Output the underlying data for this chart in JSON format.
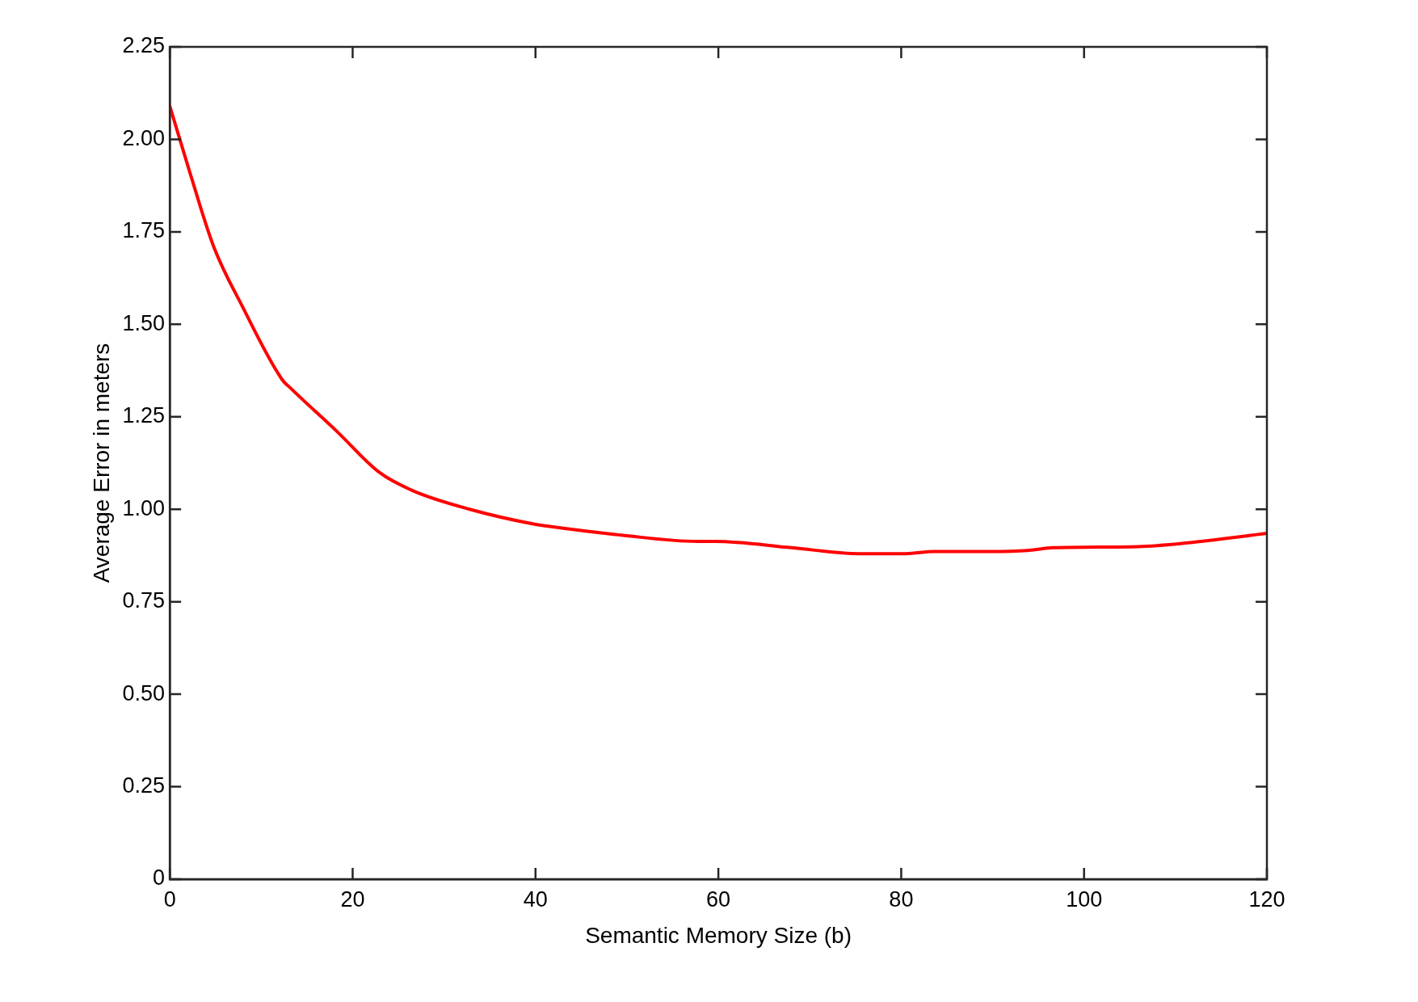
{
  "chart_data": {
    "type": "line",
    "xlabel": "Semantic Memory Size (b)",
    "ylabel": "Average Error in meters",
    "x": [
      0,
      2.2,
      4.8,
      7.9,
      12.3,
      13.1,
      18.3,
      22.9,
      26.6,
      32.8,
      39.8,
      41.1,
      49.4,
      57.7,
      59.7,
      68,
      75.3,
      80.5,
      83.6,
      89.8,
      94,
      96.6,
      105.9,
      111.6,
      120
    ],
    "series": [
      {
        "color": "#ff0000",
        "values": [
          2.09,
          1.91,
          1.71,
          1.55,
          1.35,
          1.33,
          1.21,
          1.1,
          1.05,
          1.0,
          0.96,
          0.955,
          0.93,
          0.913,
          0.913,
          0.896,
          0.88,
          0.88,
          0.886,
          0.886,
          0.889,
          0.896,
          0.899,
          0.91,
          0.935
        ]
      }
    ],
    "xlim": [
      0,
      120
    ],
    "xticks": [
      0,
      20,
      40,
      60,
      80,
      100,
      120
    ],
    "ylim": [
      0,
      2.25
    ],
    "yticks": [
      0,
      {
        "value": 0.25,
        "label": "0.25"
      },
      {
        "value": 0.5,
        "label": "0.50"
      },
      {
        "value": 0.75,
        "label": "0.75"
      },
      {
        "value": 1,
        "label": "1.00"
      },
      {
        "value": 1.25,
        "label": "1.25"
      },
      {
        "value": 1.5,
        "label": "1.50"
      },
      {
        "value": 1.75,
        "label": "1.75"
      },
      {
        "value": 2,
        "label": "2.00"
      },
      {
        "value": 2.25,
        "label": "2.25"
      }
    ],
    "grid": false,
    "legend": false,
    "marker": "none",
    "line_style": "solid"
  }
}
